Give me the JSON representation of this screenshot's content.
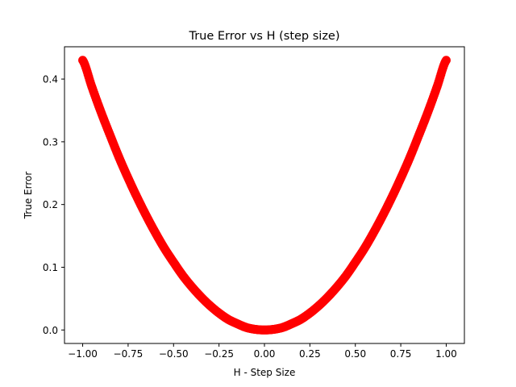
{
  "chart_data": {
    "type": "scatter",
    "title": "True Error vs H (step size)",
    "xlabel": "H - Step Size",
    "ylabel": "True Error",
    "xlim": [
      -1.1,
      1.1
    ],
    "ylim": [
      -0.0215,
      0.4515
    ],
    "x_ticks": [
      -1.0,
      -0.75,
      -0.5,
      -0.25,
      0.0,
      0.25,
      0.5,
      0.75,
      1.0
    ],
    "x_tick_labels": [
      "−1.00",
      "−0.75",
      "−0.50",
      "−0.25",
      "0.00",
      "0.25",
      "0.50",
      "0.75",
      "1.00"
    ],
    "y_ticks": [
      0.0,
      0.1,
      0.2,
      0.3,
      0.4
    ],
    "y_tick_labels": [
      "0.0",
      "0.1",
      "0.2",
      "0.3",
      "0.4"
    ],
    "grid": false,
    "series": [
      {
        "color": "#ff0000",
        "marker": "circle",
        "x": [
          -1.0,
          -0.95,
          -0.9,
          -0.85,
          -0.8,
          -0.75,
          -0.7,
          -0.65,
          -0.6,
          -0.55,
          -0.5,
          -0.45,
          -0.4,
          -0.35,
          -0.3,
          -0.25,
          -0.2,
          -0.15,
          -0.1,
          -0.05,
          0.0,
          0.05,
          0.1,
          0.15,
          0.2,
          0.25,
          0.3,
          0.35,
          0.4,
          0.45,
          0.5,
          0.55,
          0.6,
          0.65,
          0.7,
          0.75,
          0.8,
          0.85,
          0.9,
          0.95,
          1.0
        ],
        "y": [
          0.43,
          0.388,
          0.348,
          0.311,
          0.275,
          0.242,
          0.211,
          0.182,
          0.155,
          0.13,
          0.108,
          0.087,
          0.069,
          0.053,
          0.039,
          0.027,
          0.017,
          0.01,
          0.004,
          0.001,
          0.0,
          0.001,
          0.004,
          0.01,
          0.017,
          0.027,
          0.039,
          0.053,
          0.069,
          0.087,
          0.108,
          0.13,
          0.155,
          0.182,
          0.211,
          0.242,
          0.275,
          0.311,
          0.348,
          0.388,
          0.43
        ]
      }
    ]
  }
}
